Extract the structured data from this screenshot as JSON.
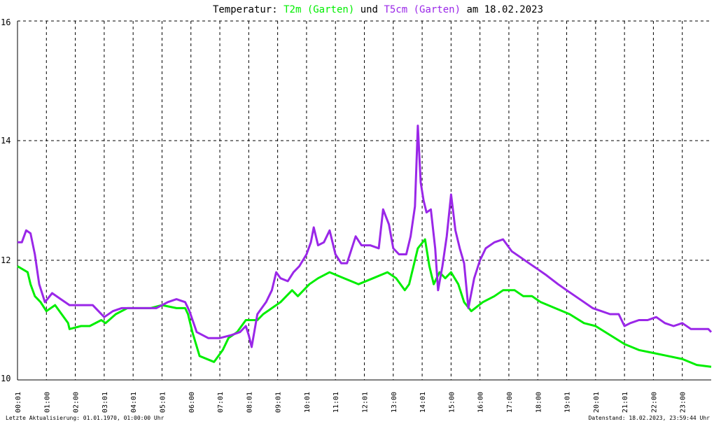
{
  "title": {
    "prefix": "Temperatur:",
    "series1": "T2m (Garten)",
    "middle": "und",
    "series2": "T5cm (Garten)",
    "suffix": "am 18.02.2023"
  },
  "footer": {
    "left": "Letzte Aktualisierung: 01.01.1970, 01:00:00 Uhr",
    "right": "Datenstand: 18.02.2023, 23:59:44 Uhr"
  },
  "colors": {
    "t2m": "#00ee00",
    "t5cm": "#9a27e8",
    "grid": "#000000",
    "background": "#ffffff"
  },
  "chart_data": {
    "type": "line",
    "title": "Temperatur: T2m (Garten) und T5cm (Garten) am 18.02.2023",
    "xlabel": "",
    "ylabel": "",
    "xlim": [
      0,
      24
    ],
    "ylim": [
      10,
      16
    ],
    "y_ticks": [
      "10",
      "12",
      "14",
      "16"
    ],
    "y_tick_values": [
      10,
      12,
      14,
      16
    ],
    "x_ticks": [
      "00:01",
      "01:00",
      "02:00",
      "03:01",
      "04:01",
      "05:01",
      "06:00",
      "07:01",
      "08:01",
      "09:01",
      "10:01",
      "11:01",
      "12:01",
      "13:00",
      "14:01",
      "15:00",
      "16:00",
      "17:00",
      "18:00",
      "19:01",
      "20:01",
      "21:01",
      "22:00",
      "23:00"
    ],
    "x_tick_values": [
      0,
      1,
      2,
      3,
      4,
      5,
      6,
      7,
      8,
      9,
      10,
      11,
      12,
      13,
      14,
      15,
      16,
      17,
      18,
      19,
      20,
      21,
      22,
      23
    ],
    "grid": true,
    "series": [
      {
        "name": "T2m (Garten)",
        "color": "#00ee00",
        "x": [
          0,
          0.35,
          0.45,
          0.6,
          0.8,
          1.0,
          1.3,
          1.75,
          1.8,
          2.2,
          2.5,
          2.9,
          3.05,
          3.4,
          3.8,
          4.2,
          4.6,
          5.0,
          5.5,
          5.8,
          5.9,
          6.05,
          6.3,
          6.8,
          7.1,
          7.3,
          7.6,
          7.9,
          8.3,
          8.5,
          8.8,
          9.1,
          9.3,
          9.5,
          9.7,
          10.1,
          10.4,
          10.8,
          11.3,
          11.8,
          12.3,
          12.8,
          13.1,
          13.4,
          13.55,
          13.85,
          14.1,
          14.25,
          14.4,
          14.6,
          14.8,
          15.0,
          15.25,
          15.45,
          15.7,
          16.1,
          16.5,
          16.8,
          17.2,
          17.5,
          17.8,
          18.1,
          18.6,
          19.1,
          19.6,
          20.0,
          20.5,
          21.0,
          21.5,
          22.0,
          22.5,
          23.0,
          23.5,
          24.0
        ],
        "values": [
          11.9,
          11.8,
          11.6,
          11.4,
          11.3,
          11.15,
          11.25,
          10.95,
          10.85,
          10.9,
          10.9,
          11.0,
          10.95,
          11.1,
          11.2,
          11.2,
          11.2,
          11.25,
          11.2,
          11.2,
          11.1,
          10.8,
          10.4,
          10.3,
          10.5,
          10.7,
          10.8,
          11.0,
          11.0,
          11.1,
          11.2,
          11.3,
          11.4,
          11.5,
          11.4,
          11.6,
          11.7,
          11.8,
          11.7,
          11.6,
          11.7,
          11.8,
          11.7,
          11.5,
          11.6,
          12.2,
          12.35,
          11.9,
          11.6,
          11.8,
          11.7,
          11.8,
          11.6,
          11.3,
          11.15,
          11.3,
          11.4,
          11.5,
          11.5,
          11.4,
          11.4,
          11.3,
          11.2,
          11.1,
          10.95,
          10.9,
          10.75,
          10.6,
          10.5,
          10.45,
          10.4,
          10.35,
          10.25,
          10.22
        ]
      },
      {
        "name": "T5cm (Garten)",
        "color": "#9a27e8",
        "x": [
          0,
          0.15,
          0.3,
          0.45,
          0.6,
          0.75,
          0.95,
          1.2,
          1.5,
          1.8,
          2.2,
          2.6,
          3.0,
          3.3,
          3.6,
          4.0,
          4.4,
          4.8,
          5.2,
          5.5,
          5.8,
          5.95,
          6.2,
          6.6,
          7.0,
          7.4,
          7.7,
          7.9,
          8.0,
          8.1,
          8.3,
          8.6,
          8.8,
          8.95,
          9.1,
          9.35,
          9.55,
          9.75,
          10.0,
          10.15,
          10.25,
          10.4,
          10.6,
          10.8,
          11.0,
          11.2,
          11.4,
          11.7,
          11.9,
          12.2,
          12.5,
          12.65,
          12.85,
          13.0,
          13.2,
          13.45,
          13.6,
          13.75,
          13.85,
          13.95,
          14.05,
          14.15,
          14.3,
          14.45,
          14.55,
          14.7,
          14.85,
          15.0,
          15.15,
          15.3,
          15.45,
          15.6,
          15.8,
          16.0,
          16.2,
          16.5,
          16.8,
          17.1,
          17.4,
          17.7,
          18.0,
          18.3,
          18.7,
          19.0,
          19.3,
          19.6,
          19.9,
          20.2,
          20.5,
          20.8,
          21.0,
          21.2,
          21.5,
          21.8,
          22.1,
          22.4,
          22.7,
          23.0,
          23.3,
          23.6,
          23.9,
          24.0
        ],
        "values": [
          12.3,
          12.3,
          12.5,
          12.45,
          12.1,
          11.6,
          11.3,
          11.45,
          11.35,
          11.25,
          11.25,
          11.25,
          11.05,
          11.15,
          11.2,
          11.2,
          11.2,
          11.2,
          11.3,
          11.35,
          11.3,
          11.15,
          10.8,
          10.7,
          10.7,
          10.75,
          10.8,
          10.9,
          10.75,
          10.55,
          11.1,
          11.3,
          11.5,
          11.8,
          11.7,
          11.65,
          11.8,
          11.9,
          12.1,
          12.3,
          12.55,
          12.25,
          12.3,
          12.5,
          12.1,
          11.95,
          11.95,
          12.4,
          12.25,
          12.25,
          12.2,
          12.85,
          12.6,
          12.2,
          12.1,
          12.1,
          12.4,
          12.9,
          14.25,
          13.3,
          13.0,
          12.8,
          12.85,
          12.2,
          11.5,
          11.9,
          12.4,
          13.1,
          12.5,
          12.2,
          11.95,
          11.2,
          11.7,
          12.0,
          12.2,
          12.3,
          12.35,
          12.15,
          12.05,
          11.95,
          11.85,
          11.75,
          11.6,
          11.5,
          11.4,
          11.3,
          11.2,
          11.15,
          11.1,
          11.1,
          10.9,
          10.95,
          11.0,
          11.0,
          11.05,
          10.95,
          10.9,
          10.95,
          10.85,
          10.85,
          10.85,
          10.8
        ]
      }
    ]
  }
}
